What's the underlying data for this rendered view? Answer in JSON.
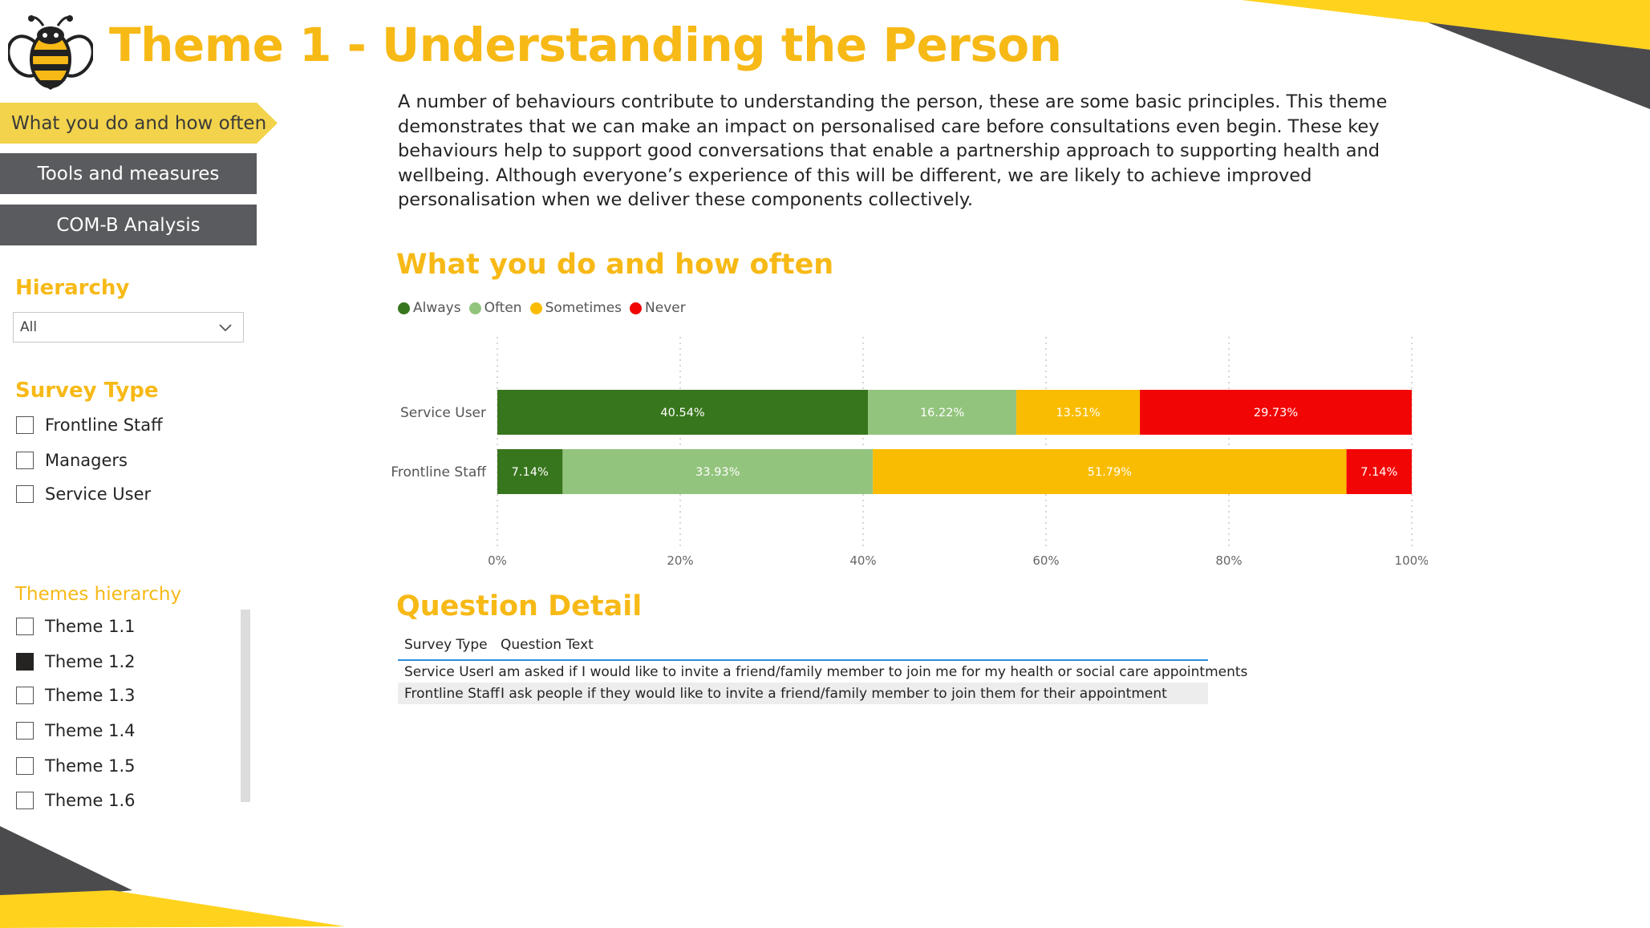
{
  "header": {
    "title": "Theme 1 - Understanding the Person"
  },
  "nav": {
    "active": "What you do and how often",
    "tools": "Tools and measures",
    "comb": "COM-B Analysis"
  },
  "filters": {
    "hierarchy": {
      "title": "Hierarchy",
      "selected": "All"
    },
    "survey_type": {
      "title": "Survey Type",
      "options": [
        "Frontline Staff",
        "Managers",
        "Service User"
      ]
    },
    "themes": {
      "title": "Themes hierarchy",
      "options": [
        "Theme 1.1",
        "Theme 1.2",
        "Theme 1.3",
        "Theme 1.4",
        "Theme 1.5",
        "Theme 1.6"
      ],
      "checked": "Theme 1.2"
    }
  },
  "intro": "A number of behaviours contribute to understanding the person, these are some basic principles. This theme demonstrates that we can make an impact on personalised care before consultations even begin. These key  behaviours help to support good conversations that enable a partnership approach to supporting health  and wellbeing. Although everyone’s experience of this will be different, we are likely to achieve improved  personalisation when we deliver these components collectively.",
  "chart_section": {
    "title": "What you do and how often"
  },
  "chart_data": {
    "type": "bar",
    "orientation": "horizontal",
    "stacked": "100%",
    "categories": [
      "Service User",
      "Frontline Staff"
    ],
    "series": [
      {
        "name": "Always",
        "color": "#38761D",
        "values": [
          40.54,
          7.14
        ],
        "labels": [
          "40.54%",
          "7.14%"
        ]
      },
      {
        "name": "Often",
        "color": "#93C47D",
        "values": [
          16.22,
          33.93
        ],
        "labels": [
          "16.22%",
          "33.93%"
        ]
      },
      {
        "name": "Sometimes",
        "color": "#F9BC00",
        "values": [
          13.51,
          51.79
        ],
        "labels": [
          "13.51%",
          "51.79%"
        ]
      },
      {
        "name": "Never",
        "color": "#F20505",
        "values": [
          29.73,
          7.14
        ],
        "labels": [
          "29.73%",
          "7.14%"
        ]
      }
    ],
    "xticks": [
      "0%",
      "20%",
      "40%",
      "60%",
      "80%",
      "100%"
    ],
    "xlim": [
      0,
      100
    ],
    "legend_position": "top-left",
    "grid": "vertical dotted"
  },
  "question_section": {
    "title": "Question Detail",
    "columns": [
      "Survey Type",
      "Question Text"
    ],
    "rows": [
      [
        "Service User",
        "I am asked if I would like to invite a friend/family member to join me for my health or social care appointments"
      ],
      [
        "Frontline Staff",
        "I ask people if they would like to invite a friend/family member to join them for their appointment"
      ]
    ]
  },
  "colors": {
    "accent": "#F7B916",
    "nav_dark": "#5A5B5E",
    "nav_active": "#F2D34B"
  }
}
